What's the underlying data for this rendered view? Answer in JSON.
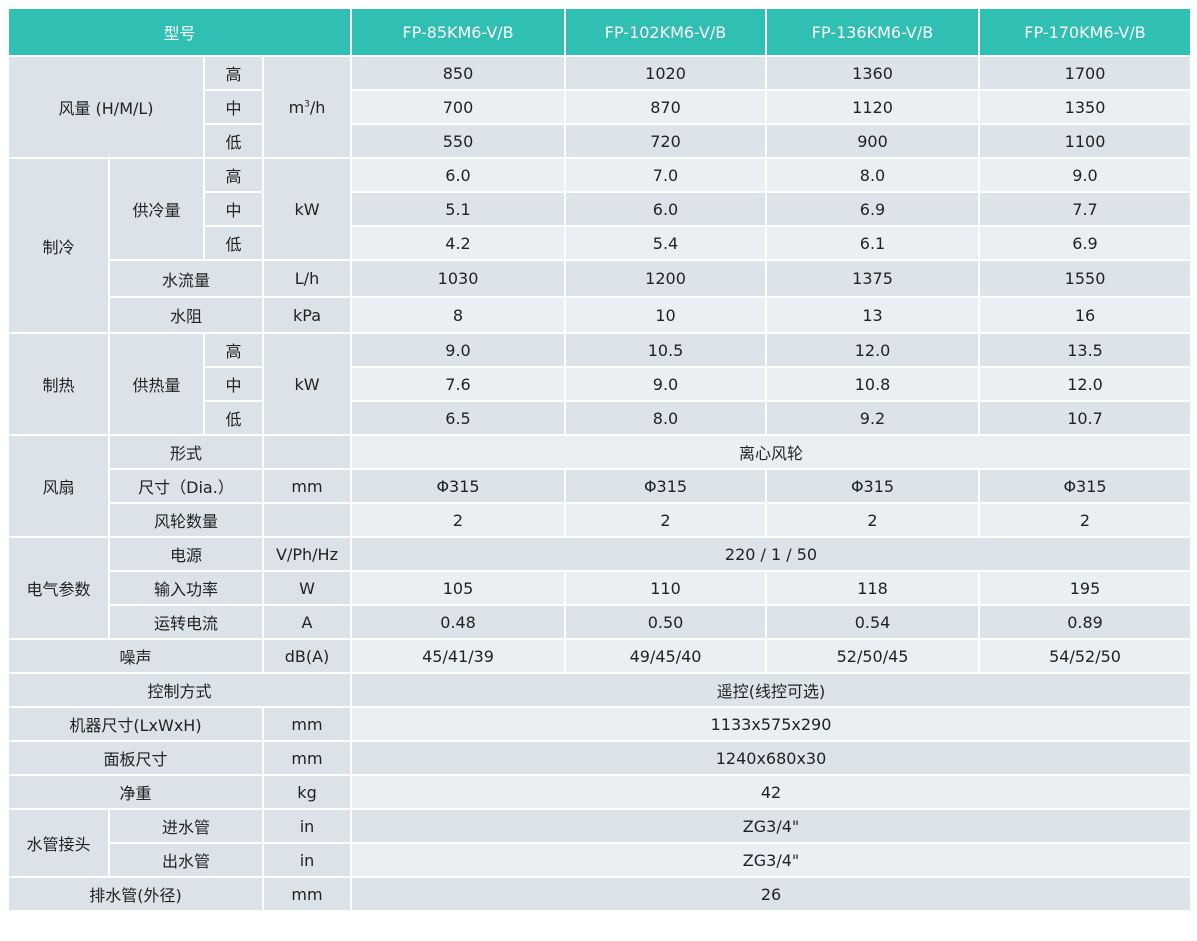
{
  "header": {
    "title": "型号",
    "models": [
      "FP-85KM6-V/B",
      "FP-102KM6-V/B",
      "FP-136KM6-V/B",
      "FP-170KM6-V/B"
    ]
  },
  "levels": [
    "高",
    "中",
    "低"
  ],
  "airflow": {
    "label": "风量 (H/M/L)",
    "unit_base": "m",
    "unit_sup": "3",
    "unit_tail": "/h",
    "values": [
      [
        "850",
        "1020",
        "1360",
        "1700"
      ],
      [
        "700",
        "870",
        "1120",
        "1350"
      ],
      [
        "550",
        "720",
        "900",
        "1100"
      ]
    ]
  },
  "cooling": {
    "label": "制冷",
    "capacity_label": "供冷量",
    "unit": "kW",
    "values": [
      [
        "6.0",
        "7.0",
        "8.0",
        "9.0"
      ],
      [
        "5.1",
        "6.0",
        "6.9",
        "7.7"
      ],
      [
        "4.2",
        "5.4",
        "6.1",
        "6.9"
      ]
    ],
    "water_flow": {
      "label": "水流量",
      "unit": "L/h",
      "values": [
        "1030",
        "1200",
        "1375",
        "1550"
      ]
    },
    "water_resistance": {
      "label": "水阻",
      "unit": "kPa",
      "values": [
        "8",
        "10",
        "13",
        "16"
      ]
    }
  },
  "heating": {
    "label": "制热",
    "capacity_label": "供热量",
    "unit": "kW",
    "values": [
      [
        "9.0",
        "10.5",
        "12.0",
        "13.5"
      ],
      [
        "7.6",
        "9.0",
        "10.8",
        "12.0"
      ],
      [
        "6.5",
        "8.0",
        "9.2",
        "10.7"
      ]
    ]
  },
  "fan": {
    "label": "风扇",
    "type": {
      "label": "形式",
      "value": "离心风轮"
    },
    "size": {
      "label": "尺寸（Dia.）",
      "unit": "mm",
      "values": [
        "Φ315",
        "Φ315",
        "Φ315",
        "Φ315"
      ]
    },
    "wheels": {
      "label": "风轮数量",
      "values": [
        "2",
        "2",
        "2",
        "2"
      ]
    }
  },
  "electrical": {
    "label": "电气参数",
    "power_supply": {
      "label": "电源",
      "unit": "V/Ph/Hz",
      "value": "220 / 1 / 50"
    },
    "input_power": {
      "label": "输入功率",
      "unit": "W",
      "values": [
        "105",
        "110",
        "118",
        "195"
      ]
    },
    "current": {
      "label": "运转电流",
      "unit": "A",
      "values": [
        "0.48",
        "0.50",
        "0.54",
        "0.89"
      ]
    }
  },
  "noise": {
    "label": "噪声",
    "unit": "dB(A)",
    "values": [
      "45/41/39",
      "49/45/40",
      "52/50/45",
      "54/52/50"
    ]
  },
  "control": {
    "label": "控制方式",
    "value": "遥控(线控可选)"
  },
  "dimensions": {
    "label": "机器尺寸(LxWxH)",
    "unit": "mm",
    "value": "1133x575x290"
  },
  "panel": {
    "label": "面板尺寸",
    "unit": "mm",
    "value": "1240x680x30"
  },
  "weight": {
    "label": "净重",
    "unit": "kg",
    "value": "42"
  },
  "pipes": {
    "label": "水管接头",
    "inlet": {
      "label": "进水管",
      "unit": "in",
      "value": "ZG3/4\""
    },
    "outlet": {
      "label": "出水管",
      "unit": "in",
      "value": "ZG3/4\""
    }
  },
  "drain": {
    "label": "排水管(外径)",
    "unit": "mm",
    "value": "26"
  },
  "colors": {
    "header": "#2fbfb3",
    "label_cell": "#dce3e8",
    "row_dark": "#dde4e9",
    "row_light": "#e9eff3"
  }
}
